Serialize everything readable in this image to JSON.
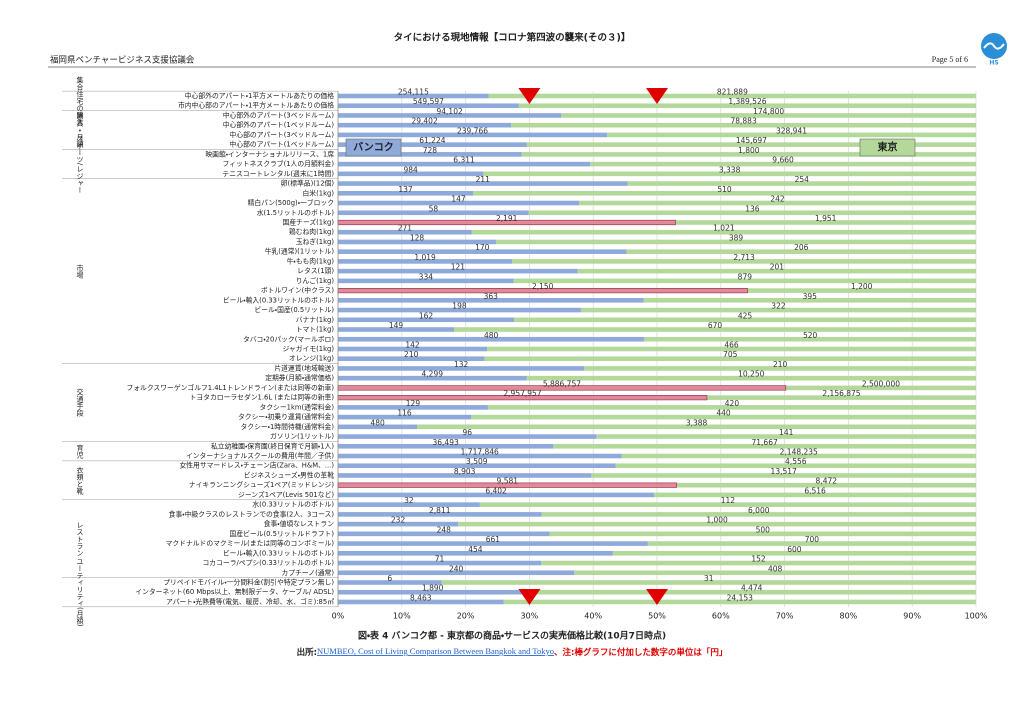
{
  "header": {
    "title": "タイにおける現地情報【コロナ第四波の襲来(その３)】",
    "organization": "福岡県ベンチャービジネス支援協議会",
    "page": "Page 5 of 6",
    "logo": "HS"
  },
  "chart_data": {
    "type": "bar",
    "stacked": "percent",
    "orientation": "horizontal",
    "xlim": [
      0,
      100
    ],
    "xticks": [
      {
        "value": 0,
        "label": "0%"
      },
      {
        "value": 10,
        "label": "10%"
      },
      {
        "value": 20,
        "label": "20%"
      },
      {
        "value": 30,
        "label": "30%"
      },
      {
        "value": 40,
        "label": "40%"
      },
      {
        "value": 50,
        "label": "50%"
      },
      {
        "value": 60,
        "label": "60%"
      },
      {
        "value": 70,
        "label": "70%"
      },
      {
        "value": 80,
        "label": "80%"
      },
      {
        "value": 90,
        "label": "90%"
      },
      {
        "value": 100,
        "label": "100%"
      }
    ],
    "grid": true,
    "highlight_color": "#e28a9c",
    "reference_markers": [
      30,
      50
    ],
    "marker_color": "#e00000",
    "groups": [
      {
        "name": "集合住宅の購入",
        "categories": [
          "中心部外のアパート・1平方メートルあたりの価格",
          "市内中心部のアパート・1平方メートルあたりの価格"
        ]
      },
      {
        "name": "家賃・月額",
        "categories": [
          "中心部外のアパート(3ベッドルーム)",
          "中心部外のアパート(1ベッドルーム)",
          "中心部のアパート(3ベッドルーム)",
          "中心部のアパート(1ベッドルーム)"
        ]
      },
      {
        "name": "スポーツ/レジャー",
        "categories": [
          "映画館・インターナショナルリリース、1席",
          "フィットネスクラブ(1人の月額料金)",
          "テニスコートレンタル(週末に1時間)"
        ]
      },
      {
        "name": "市場",
        "categories": [
          "卵(標準品)(12個)",
          "白米(1kg)",
          "精白パン(500g)・一ブロック",
          "水(1.5リットルのボトル)",
          "国産チーズ(1kg)",
          "鶏むね肉(1kg)",
          "玉ねぎ(1kg)",
          "牛乳(通常)(1リットル)",
          "牛・もも肉(1kg)",
          "レタス(1頭)",
          "りんご(1kg)",
          "ボトルワイン(中クラス)",
          "ビール・輸入(0.33リットルのボトル)",
          "ビール・国産(0.5リットル)",
          "バナナ(1kg)",
          "トマト(1kg)",
          "タバコ・20パック(マールボロ)",
          "ジャガイモ(1kg)",
          "オレンジ(1kg)"
        ]
      },
      {
        "name": "交通手段",
        "categories": [
          "片道運賃(地域輸送)",
          "定期券(月額・通常価格)",
          "フォルクスワーゲンゴルフ1.4L1トレンドライン(または同等の新車)",
          "トヨタカローラセダン1.6L (または同等の新車)",
          "タクシー1km(通常料金)",
          "タクシー・初乗り運賃(通常料金)",
          "タクシー・1時間待機(通常料金)",
          "ガソリン(1リットル)"
        ]
      },
      {
        "name": "育児",
        "categories": [
          "私立幼稚園・保育園(終日保育で月額・1人)",
          "インターナショナルスクールの費用(年間／子供)"
        ]
      },
      {
        "name": "衣類と靴",
        "categories": [
          "女性用サマードレス・チェーン店(Zara、H&M、...)",
          "ビジネスシューズ・男性の革靴",
          "ナイキランニングシューズ1ペア(ミッドレンジ)",
          "ジーンズ1ペア(Levis 501など)"
        ]
      },
      {
        "name": "レストラン",
        "categories": [
          "水(0.33リットルのボトル)",
          "食事・中級クラスのレストランでの食事(2人、3コース)",
          "食事・値頃なレストラン",
          "国産ビール(0.5リットルドラフト)",
          "マクドナルドのマクミール(または同等のコンボミール)",
          "ビール・輸入(0.33リットルのボトル)",
          "コカコーラ/ペプシ(0.33リットルのボトル)",
          "カプチーノ(通常)"
        ]
      },
      {
        "name": "ユーティリティ(月額)",
        "categories": [
          "プリペイドモバイル・一分間料金(割引や特定プラン無し)",
          "インターネット(60 Mbps以上、無制限データ、ケーブル/ ADSL)",
          "アパート・光熱費等(電気、暖房、冷却、水、ゴミ):85㎡"
        ]
      }
    ],
    "series": [
      {
        "name": "バンコク",
        "color": "#8eaadb",
        "values": [
          254115,
          549597,
          94102,
          29402,
          239766,
          61224,
          728,
          6311,
          984,
          211,
          137,
          147,
          58,
          2191,
          271,
          128,
          170,
          1019,
          121,
          334,
          2150,
          363,
          198,
          162,
          149,
          480,
          142,
          210,
          132,
          4299,
          5886757,
          2957957,
          129,
          116,
          480,
          96,
          36493,
          1717846,
          3509,
          8903,
          9581,
          6402,
          32,
          2811,
          232,
          248,
          661,
          454,
          71,
          240,
          6,
          1890,
          8463
        ],
        "value_labels": [
          "254,115",
          "549,597",
          "94,102",
          "29,402",
          "239,766",
          "61,224",
          "728",
          "6,311",
          "984",
          "211",
          "137",
          "147",
          "58",
          "2,191",
          "271",
          "128",
          "170",
          "1,019",
          "121",
          "334",
          "2,150",
          "363",
          "198",
          "162",
          "149",
          "480",
          "142",
          "210",
          "132",
          "4,299",
          "5,886,757",
          "2,957,957",
          "129",
          "116",
          "480",
          "96",
          "36,493",
          "1,717,846",
          "3,509",
          "8,903",
          "9,581",
          "6,402",
          "32",
          "2,811",
          "232",
          "248",
          "661",
          "454",
          "71",
          "240",
          "6",
          "1,890",
          "8,463"
        ]
      },
      {
        "name": "東京",
        "color": "#b4d89a",
        "values": [
          821889,
          1389526,
          174800,
          78883,
          328941,
          145697,
          1800,
          9660,
          3338,
          254,
          510,
          242,
          136,
          1951,
          1021,
          389,
          206,
          2713,
          201,
          879,
          1200,
          395,
          322,
          425,
          670,
          520,
          466,
          705,
          210,
          10250,
          2500000,
          2156875,
          420,
          440,
          3388,
          141,
          71667,
          2148235,
          4556,
          13517,
          8472,
          6516,
          112,
          6000,
          1000,
          500,
          700,
          600,
          152,
          408,
          31,
          4474,
          24153
        ],
        "value_labels": [
          "821,889",
          "1,389,526",
          "174,800",
          "78,883",
          "328,941",
          "145,697",
          "1,800",
          "9,660",
          "3,338",
          "254",
          "510",
          "242",
          "136",
          "1,951",
          "1,021",
          "389",
          "206",
          "2,713",
          "201",
          "879",
          "1,200",
          "395",
          "322",
          "425",
          "670",
          "520",
          "466",
          "705",
          "210",
          "10,250",
          "2,500,000",
          "2,156,875",
          "420",
          "440",
          "3,388",
          "141",
          "71,667",
          "2,148,235",
          "4,556",
          "13,517",
          "8,472",
          "6,516",
          "112",
          "6,000",
          "1,000",
          "500",
          "700",
          "600",
          "152",
          "408",
          "31",
          "4,474",
          "24,153"
        ]
      }
    ]
  },
  "caption": "図・表 4 バンコク都 - 東京都の商品・サービスの実売価格比較(10月7日時点)",
  "source": {
    "prefix": "出所:",
    "link": "NUMBEO, Cost of Living Comparison Between Bangkok and Tokyo",
    "note": "、注:棒グラフに付加した数字の単位は「円」"
  }
}
